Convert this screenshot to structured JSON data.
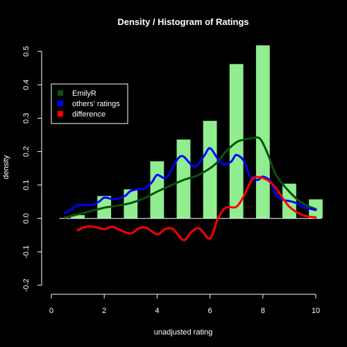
{
  "chart_data": {
    "type": "bar",
    "title": "Density / Histogram of Ratings",
    "xlabel": "unadjusted rating",
    "ylabel": "density",
    "xlim": [
      0,
      10
    ],
    "ylim": [
      -0.2,
      0.5
    ],
    "xticks": [
      0,
      2,
      4,
      6,
      8,
      10
    ],
    "yticks": [
      -0.2,
      -0.1,
      0.0,
      0.1,
      0.2,
      0.3,
      0.4,
      0.5
    ],
    "xtick_labels": [
      "0",
      "2",
      "4",
      "6",
      "8",
      "10"
    ],
    "ytick_labels": [
      "-0.2",
      "-0.1",
      "0.0",
      "0.1",
      "0.2",
      "0.3",
      "0.4",
      "0.5"
    ],
    "grid": false,
    "legend_position": "upper-left",
    "histogram": {
      "color": "#90ee90",
      "x": [
        1,
        2,
        3,
        4,
        5,
        6,
        7,
        8,
        9,
        10
      ],
      "values": [
        0.01,
        0.067,
        0.087,
        0.171,
        0.236,
        0.292,
        0.462,
        0.518,
        0.104,
        0.057
      ]
    },
    "series": [
      {
        "name": "EmilyR",
        "color": "#0b4f0b",
        "x": [
          0.5,
          1,
          1.5,
          2,
          2.5,
          3,
          3.5,
          4,
          4.5,
          5,
          5.5,
          6,
          6.3,
          6.6,
          7,
          7.3,
          7.6,
          7.9,
          8.2,
          8.5,
          9,
          9.5,
          10
        ],
        "y": [
          0.003,
          0.012,
          0.022,
          0.032,
          0.038,
          0.046,
          0.06,
          0.08,
          0.098,
          0.115,
          0.128,
          0.15,
          0.17,
          0.2,
          0.228,
          0.236,
          0.24,
          0.238,
          0.19,
          0.13,
          0.08,
          0.045,
          0.028
        ]
      },
      {
        "name": "others' ratings",
        "color": "#0000ff",
        "x": [
          0.5,
          0.8,
          1,
          1.2,
          1.5,
          1.8,
          2,
          2.3,
          2.5,
          2.8,
          3,
          3.3,
          3.5,
          3.8,
          4,
          4.3,
          4.5,
          4.8,
          5,
          5.3,
          5.5,
          5.8,
          6,
          6.3,
          6.5,
          6.8,
          7,
          7.3,
          7.5,
          7.8,
          8,
          8.3,
          8.5,
          8.8,
          9,
          9.3,
          9.5,
          10
        ],
        "y": [
          0.015,
          0.03,
          0.04,
          0.04,
          0.04,
          0.05,
          0.062,
          0.058,
          0.058,
          0.068,
          0.082,
          0.088,
          0.088,
          0.108,
          0.13,
          0.12,
          0.14,
          0.18,
          0.185,
          0.16,
          0.158,
          0.19,
          0.21,
          0.178,
          0.162,
          0.17,
          0.19,
          0.17,
          0.128,
          0.115,
          0.125,
          0.11,
          0.07,
          0.055,
          0.052,
          0.045,
          0.035,
          0.025
        ]
      },
      {
        "name": "difference",
        "color": "#ff0000",
        "x": [
          1,
          1.3,
          1.6,
          2,
          2.3,
          2.6,
          3,
          3.3,
          3.6,
          4,
          4.3,
          4.6,
          5,
          5.3,
          5.6,
          6,
          6.3,
          6.6,
          7,
          7.3,
          7.6,
          7.9,
          8.2,
          8.5,
          9,
          9.5,
          10
        ],
        "y": [
          -0.035,
          -0.025,
          -0.025,
          -0.032,
          -0.025,
          -0.035,
          -0.045,
          -0.03,
          -0.028,
          -0.048,
          -0.032,
          -0.032,
          -0.065,
          -0.04,
          -0.03,
          -0.06,
          0.0,
          0.032,
          0.035,
          0.07,
          0.118,
          0.123,
          0.113,
          0.09,
          0.035,
          0.01,
          0.003
        ]
      }
    ]
  }
}
